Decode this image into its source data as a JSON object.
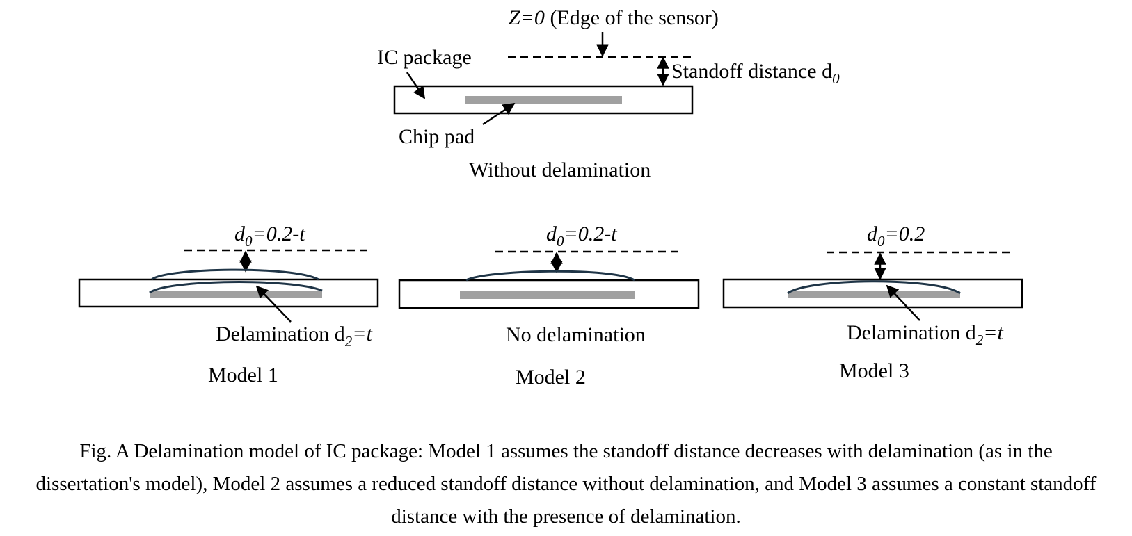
{
  "top_diagram": {
    "z_label": "Z=0",
    "z_label_rest": " (Edge of the sensor)",
    "ic_package_label": "IC package",
    "standoff_label": "Standoff distance d",
    "standoff_sub": "0",
    "chip_pad_label": "Chip pad",
    "caption": "Without delamination"
  },
  "models": [
    {
      "d0_main": "d",
      "d0_sub": "0",
      "d0_value": "=0.2-t",
      "delam_main": "Delamination d",
      "delam_sub": "2",
      "delam_rest": "=t",
      "name": "Model 1"
    },
    {
      "d0_main": "d",
      "d0_sub": "0",
      "d0_value": "=0.2-t",
      "delam_main": "No delamination",
      "delam_sub": "",
      "delam_rest": "",
      "name": "Model 2"
    },
    {
      "d0_main": "d",
      "d0_sub": "0",
      "d0_value": "=0.2",
      "delam_main": "Delamination d",
      "delam_sub": "2",
      "delam_rest": "=t",
      "name": "Model 3"
    }
  ],
  "figure_caption": "Fig. A Delamination model of IC package: Model 1 assumes the standoff distance decreases with delamination (as in the dissertation's model), Model 2 assumes a reduced standoff distance without delamination, and Model 3 assumes a constant standoff distance with the presence of delamination.",
  "colors": {
    "chip_pad": "#a0a0a0",
    "delamination_curve": "#1f3547",
    "line": "#000000"
  }
}
